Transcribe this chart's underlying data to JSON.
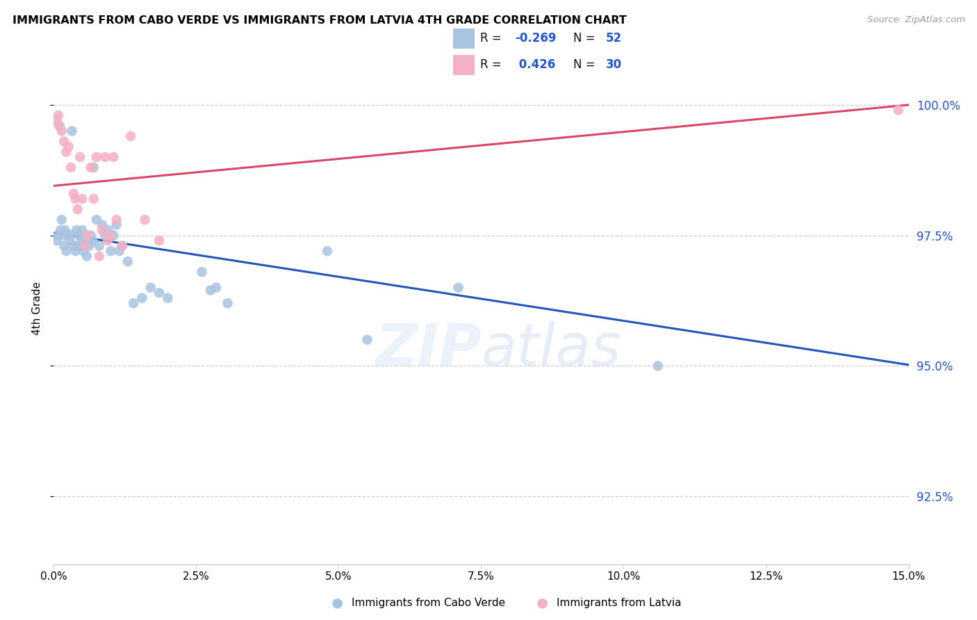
{
  "title": "IMMIGRANTS FROM CABO VERDE VS IMMIGRANTS FROM LATVIA 4TH GRADE CORRELATION CHART",
  "source": "Source: ZipAtlas.com",
  "ylabel": "4th Grade",
  "yaxis_labels": [
    "92.5%",
    "95.0%",
    "97.5%",
    "100.0%"
  ],
  "yaxis_values": [
    92.5,
    95.0,
    97.5,
    100.0
  ],
  "xmin": 0.0,
  "xmax": 15.0,
  "ymin": 91.2,
  "ymax": 101.0,
  "legend1_label": "Immigrants from Cabo Verde",
  "legend2_label": "Immigrants from Latvia",
  "r1": "-0.269",
  "n1": "52",
  "r2": " 0.426",
  "n2": "30",
  "cabo_verde_color": "#a8c4e0",
  "latvia_color": "#f4b0c4",
  "trend_cabo_color": "#2255bb",
  "trend_latvia_color": "#dd4466",
  "cabo_verde_x": [
    0.05,
    0.08,
    0.1,
    0.12,
    0.14,
    0.16,
    0.18,
    0.2,
    0.22,
    0.25,
    0.28,
    0.3,
    0.32,
    0.35,
    0.38,
    0.4,
    0.42,
    0.45,
    0.48,
    0.5,
    0.52,
    0.55,
    0.58,
    0.6,
    0.62,
    0.65,
    0.68,
    0.7,
    0.75,
    0.8,
    0.85,
    0.9,
    0.95,
    1.0,
    1.05,
    1.1,
    1.15,
    1.2,
    1.3,
    1.4,
    1.55,
    1.7,
    1.85,
    2.0,
    2.6,
    2.75,
    2.85,
    3.05,
    4.8,
    5.5,
    7.1,
    10.6
  ],
  "cabo_verde_y": [
    97.4,
    97.5,
    99.6,
    97.6,
    97.8,
    97.5,
    97.3,
    97.6,
    97.2,
    97.5,
    97.4,
    97.5,
    99.5,
    97.3,
    97.2,
    97.6,
    97.3,
    97.5,
    97.4,
    97.6,
    97.2,
    97.5,
    97.1,
    97.4,
    97.3,
    97.5,
    97.4,
    98.8,
    97.8,
    97.3,
    97.7,
    97.5,
    97.6,
    97.2,
    97.5,
    97.7,
    97.2,
    97.3,
    97.0,
    96.2,
    96.3,
    96.5,
    96.4,
    96.3,
    96.8,
    96.45,
    96.5,
    96.2,
    97.2,
    95.5,
    96.5,
    95.0
  ],
  "latvia_x": [
    0.05,
    0.08,
    0.1,
    0.14,
    0.18,
    0.22,
    0.26,
    0.3,
    0.35,
    0.38,
    0.42,
    0.46,
    0.5,
    0.55,
    0.6,
    0.65,
    0.7,
    0.75,
    0.8,
    0.85,
    0.9,
    0.95,
    1.0,
    1.05,
    1.1,
    1.2,
    1.35,
    1.6,
    1.85,
    14.82
  ],
  "latvia_y": [
    99.7,
    99.8,
    99.6,
    99.5,
    99.3,
    99.1,
    99.2,
    98.8,
    98.3,
    98.2,
    98.0,
    99.0,
    98.2,
    97.3,
    97.5,
    98.8,
    98.2,
    99.0,
    97.1,
    97.6,
    99.0,
    97.4,
    97.5,
    99.0,
    97.8,
    97.3,
    99.4,
    97.8,
    97.4,
    99.9
  ],
  "trend_blue_x0": 0.0,
  "trend_blue_y0": 97.55,
  "trend_blue_x1": 15.0,
  "trend_blue_y1": 95.02,
  "trend_pink_x0": 0.0,
  "trend_pink_y0": 98.45,
  "trend_pink_x1": 15.0,
  "trend_pink_y1": 100.0
}
